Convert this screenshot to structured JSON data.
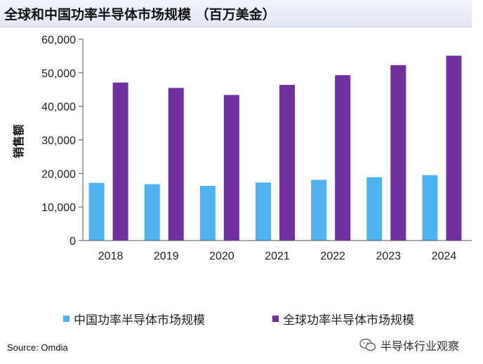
{
  "header": {
    "title": "全球和中国功率半导体市场规模 （百万美金）"
  },
  "source": "Source: Omdia",
  "watermark": {
    "text": "半导体行业观察",
    "icon": "wechat-icon"
  },
  "chart_data": {
    "type": "bar",
    "title": "全球和中国功率半导体市场规模 （百万美金）",
    "xlabel": "",
    "ylabel": "销售额",
    "ylim": [
      0,
      60000
    ],
    "yticks": [
      0,
      10000,
      20000,
      30000,
      40000,
      50000,
      60000
    ],
    "ytick_labels": [
      "0",
      "10,000",
      "20,000",
      "30,000",
      "40,000",
      "50,000",
      "60,000"
    ],
    "grid": false,
    "legend_position": "bottom",
    "categories": [
      "2018",
      "2019",
      "2020",
      "2021",
      "2022",
      "2023",
      "2024"
    ],
    "series": [
      {
        "name": "中国功率半导体市场规模",
        "color": "#4fb3f2",
        "values": [
          17200,
          16800,
          16300,
          17300,
          18100,
          18900,
          19500
        ]
      },
      {
        "name": "全球功率半导体市场规模",
        "color": "#7030a0",
        "values": [
          47100,
          45500,
          43400,
          46400,
          49300,
          52300,
          55100
        ]
      }
    ]
  }
}
